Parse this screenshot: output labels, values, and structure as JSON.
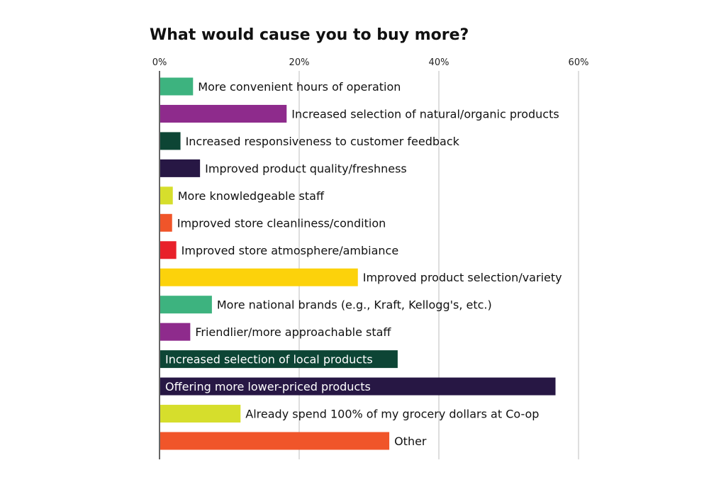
{
  "chart_data": {
    "type": "bar",
    "orientation": "horizontal",
    "title": "What would cause you to buy more?",
    "xlabel": "",
    "ylabel": "",
    "xlim": [
      0,
      60
    ],
    "xticks": [
      0,
      20,
      40,
      60
    ],
    "xtick_labels": [
      "0%",
      "20%",
      "40%",
      "60%"
    ],
    "grid": true,
    "categories": [
      "More convenient hours of operation",
      "Increased selection of natural/organic products",
      "Increased responsiveness to customer feedback",
      "Improved product quality/freshness",
      "More knowledgeable staff",
      "Improved store cleanliness/condition",
      "Improved store atmosphere/ambiance",
      "Improved product selection/variety",
      "More national brands (e.g., Kraft, Kellogg's, etc.)",
      "Friendlier/more approachable staff",
      "Increased selection of local products",
      "Offering more lower-priced products",
      "Already spend 100% of my grocery dollars at Co-op",
      "Other"
    ],
    "values": [
      4.7,
      18.1,
      2.9,
      5.7,
      1.8,
      1.7,
      2.3,
      28.3,
      7.4,
      4.3,
      34.0,
      56.6,
      11.5,
      32.8
    ],
    "colors": [
      "#3db37f",
      "#8e2b8c",
      "#0d4535",
      "#271744",
      "#d6de2c",
      "#f0552a",
      "#e8202a",
      "#fcd20b",
      "#3db37f",
      "#8e2b8c",
      "#0d4535",
      "#271744",
      "#d6de2c",
      "#f0552a"
    ],
    "label_inside": [
      false,
      false,
      false,
      false,
      false,
      false,
      false,
      false,
      false,
      false,
      true,
      true,
      false,
      false
    ]
  }
}
